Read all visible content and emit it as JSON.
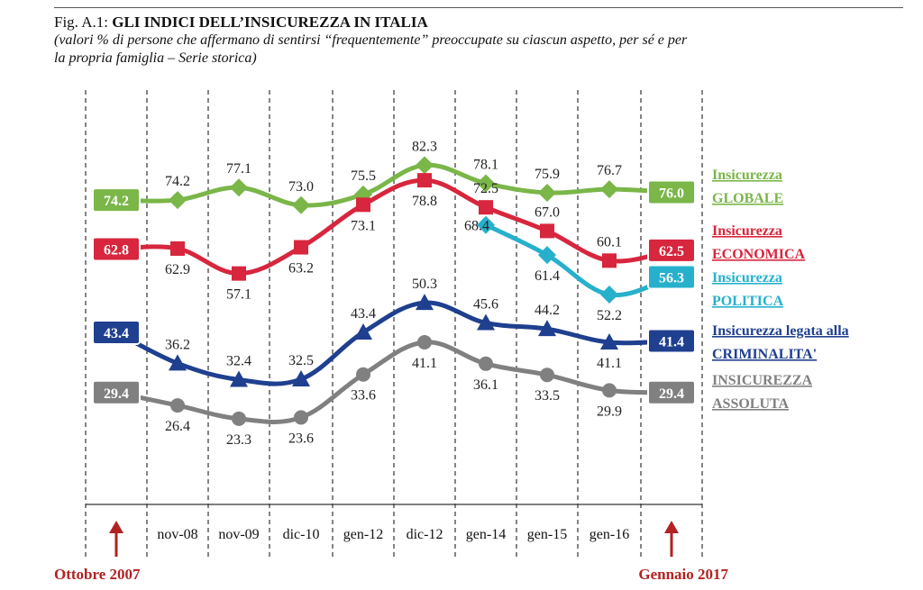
{
  "figure": {
    "number": "Fig. A.1:",
    "title": "GLI INDICI DELL’INSICUREZZA IN ITALIA",
    "subtitle_line1": "(valori % di persone che affermano di sentirsi “frequentemente” preoccupate su ciascun aspetto, per sé e per",
    "subtitle_line2": "la propria famiglia – Serie storica)"
  },
  "annotations": {
    "start": "Ottobre 2007",
    "end": "Gennaio 2017"
  },
  "colors": {
    "globale": "#7ab648",
    "economica": "#d7263d",
    "politica": "#27b0cc",
    "criminalita": "#1f3f8f",
    "assoluta": "#808080",
    "annotation": "#b22222"
  },
  "chart_data": {
    "type": "line",
    "categories": [
      "Ottobre 2007",
      "nov-08",
      "nov-09",
      "dic-10",
      "gen-12",
      "dic-12",
      "gen-14",
      "gen-15",
      "gen-16",
      "Gennaio 2017"
    ],
    "tick_labels": [
      "nov-08",
      "nov-09",
      "dic-10",
      "gen-12",
      "dic-12",
      "gen-14",
      "gen-15",
      "gen-16"
    ],
    "ylim": [
      15,
      90
    ],
    "grid": "vertical dashed",
    "legend": "right",
    "series": [
      {
        "key": "globale",
        "name_line1": "Insicurezza",
        "name_line2": "GLOBALE",
        "marker": "diamond",
        "values": [
          74.2,
          74.2,
          77.1,
          73.0,
          75.5,
          82.3,
          78.1,
          75.9,
          76.7,
          76.0
        ],
        "labels": [
          "74.2",
          "74.2",
          "77.1",
          "73.0",
          "75.5",
          "82.3",
          "78.1",
          "75.9",
          "76.7",
          "76.0"
        ]
      },
      {
        "key": "economica",
        "name_line1": "Insicurezza",
        "name_line2": "ECONOMICA",
        "marker": "square",
        "values": [
          62.8,
          62.9,
          57.1,
          63.2,
          73.1,
          78.8,
          72.5,
          67.0,
          60.1,
          62.5
        ],
        "labels": [
          "62.8",
          "62.9",
          "57.1",
          "63.2",
          "73.1",
          "78.8",
          "72.5",
          "67.0",
          "60.1",
          "62.5"
        ]
      },
      {
        "key": "politica",
        "name_line1": "Insicurezza",
        "name_line2": "POLITICA",
        "marker": "diamond",
        "values": [
          null,
          null,
          null,
          null,
          null,
          null,
          68.4,
          61.4,
          52.2,
          56.3
        ],
        "labels": [
          null,
          null,
          null,
          null,
          null,
          null,
          "68.4",
          "61.4",
          "52.2",
          "56.3"
        ]
      },
      {
        "key": "criminalita",
        "name_line1": "Insicurezza legata alla",
        "name_line2": "CRIMINALITA'",
        "marker": "triangle",
        "values": [
          43.4,
          36.2,
          32.4,
          32.5,
          43.4,
          50.3,
          45.6,
          44.2,
          41.1,
          41.4
        ],
        "labels": [
          "43.4",
          "36.2",
          "32.4",
          "32.5",
          "43.4",
          "50.3",
          "45.6",
          "44.2",
          "41.1",
          "41.4"
        ]
      },
      {
        "key": "assoluta",
        "name_line1": "INSICUREZZA",
        "name_line2": "ASSOLUTA",
        "marker": "circle",
        "values": [
          29.4,
          26.4,
          23.3,
          23.6,
          33.6,
          41.1,
          36.1,
          33.5,
          29.9,
          29.4
        ],
        "labels": [
          "29.4",
          "26.4",
          "23.3",
          "23.6",
          "33.6",
          "41.1",
          "36.1",
          "33.5",
          "29.9",
          "29.4"
        ]
      }
    ]
  }
}
